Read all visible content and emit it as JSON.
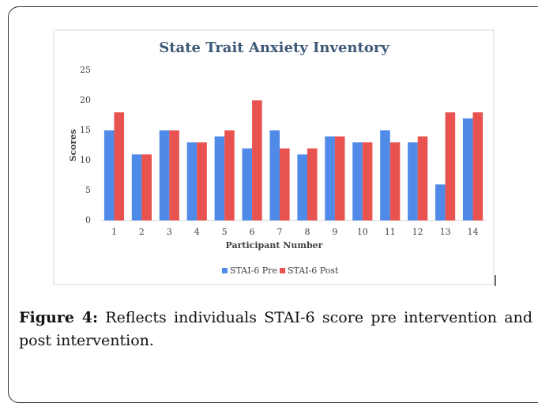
{
  "chart_data": {
    "type": "bar",
    "title": "State Trait Anxiety Inventory",
    "x_label": "Participant Number",
    "y_label": "Scores",
    "categories": [
      "1",
      "2",
      "3",
      "4",
      "5",
      "6",
      "7",
      "8",
      "9",
      "10",
      "11",
      "12",
      "13",
      "14"
    ],
    "series": [
      {
        "name": "STAI-6 Pre",
        "color": "#4f8ae8",
        "values": [
          15,
          11,
          15,
          13,
          14,
          12,
          15,
          11,
          14,
          13,
          15,
          13,
          6,
          17
        ]
      },
      {
        "name": "STAI-6 Post",
        "color": "#e8524f",
        "values": [
          18,
          11,
          15,
          13,
          15,
          20,
          12,
          12,
          14,
          13,
          13,
          14,
          18,
          18
        ]
      }
    ],
    "ylim": [
      0,
      25
    ],
    "yticks": [
      0,
      5,
      10,
      15,
      20,
      25
    ],
    "grid": false,
    "legend": "bottom"
  },
  "caption": {
    "label": "Figure 4:",
    "text": "Reflects individuals STAI-6 score pre intervention and post intervention."
  }
}
